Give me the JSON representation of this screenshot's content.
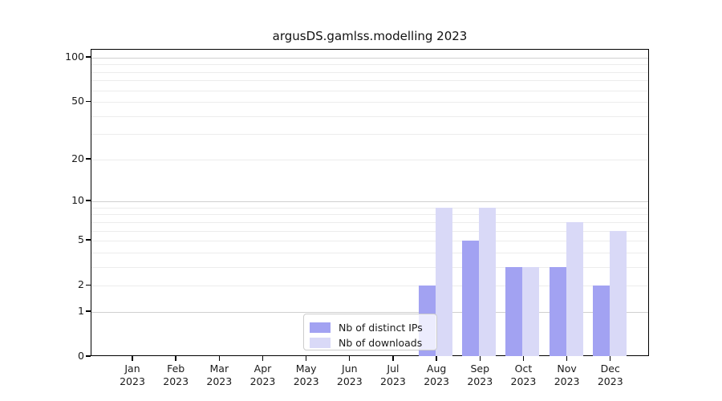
{
  "chart_data": {
    "type": "bar",
    "title": "argusDS.gamlss.modelling 2023",
    "categories": [
      "Jan",
      "Feb",
      "Mar",
      "Apr",
      "May",
      "Jun",
      "Jul",
      "Aug",
      "Sep",
      "Oct",
      "Nov",
      "Dec"
    ],
    "x_tick_second_line": "2023",
    "series": [
      {
        "name": "Nb of distinct IPs",
        "color": "#a2a2f2",
        "values": [
          0,
          0,
          0,
          0,
          0,
          0,
          0,
          2,
          5,
          3,
          3,
          2
        ]
      },
      {
        "name": "Nb of downloads",
        "color": "#d9d9f7",
        "values": [
          0,
          0,
          0,
          0,
          0,
          0,
          0,
          9,
          9,
          3,
          7,
          6
        ]
      }
    ],
    "y_axis": {
      "scale": "log1p",
      "ticks": [
        0,
        1,
        2,
        5,
        10,
        20,
        50,
        100
      ],
      "major_gridlines": [
        1,
        10,
        100
      ],
      "minor_gridlines": [
        2,
        3,
        4,
        5,
        6,
        7,
        8,
        9,
        20,
        30,
        40,
        50,
        60,
        70,
        80,
        90
      ],
      "ylim": [
        0,
        112
      ]
    },
    "legend": {
      "position": "bottom-center",
      "border_color": "#cccccc"
    },
    "colors": {
      "major_grid": "#d0d0d0",
      "minor_grid": "#ececec",
      "spine": "#000000"
    }
  }
}
